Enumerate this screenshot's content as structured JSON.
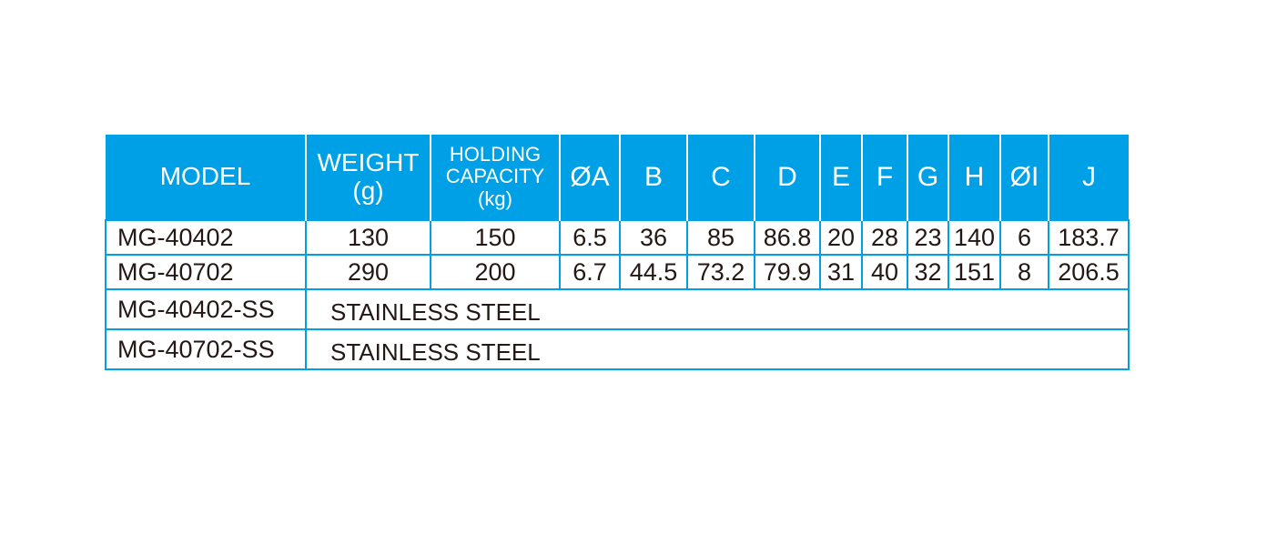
{
  "colors": {
    "header_bg": "#00a0e6",
    "header_text": "#ffffff",
    "border": "#00a0e6",
    "text": "#231815"
  },
  "table": {
    "headers": [
      {
        "lines": [
          "MODEL"
        ]
      },
      {
        "lines": [
          "WEIGHT",
          "(g)"
        ]
      },
      {
        "lines": [
          "HOLDING",
          "CAPACITY",
          "(kg)"
        ]
      },
      {
        "lines": [
          "ØA"
        ]
      },
      {
        "lines": [
          "B"
        ]
      },
      {
        "lines": [
          "C"
        ]
      },
      {
        "lines": [
          "D"
        ]
      },
      {
        "lines": [
          "E"
        ]
      },
      {
        "lines": [
          "F"
        ]
      },
      {
        "lines": [
          "G"
        ]
      },
      {
        "lines": [
          "H"
        ]
      },
      {
        "lines": [
          "ØI"
        ]
      },
      {
        "lines": [
          "J"
        ]
      }
    ],
    "rows": [
      [
        "MG-40402",
        "130",
        "150",
        "6.5",
        "36",
        "85",
        "86.8",
        "20",
        "28",
        "23",
        "140",
        "6",
        "183.7"
      ],
      [
        "MG-40702",
        "290",
        "200",
        "6.7",
        "44.5",
        "73.2",
        "79.9",
        "31",
        "40",
        "32",
        "151",
        "8",
        "206.5"
      ]
    ],
    "ss_rows": [
      {
        "model": "MG-40402-SS",
        "note": "STAINLESS STEEL"
      },
      {
        "model": "MG-40702-SS",
        "note": "STAINLESS STEEL"
      }
    ]
  }
}
